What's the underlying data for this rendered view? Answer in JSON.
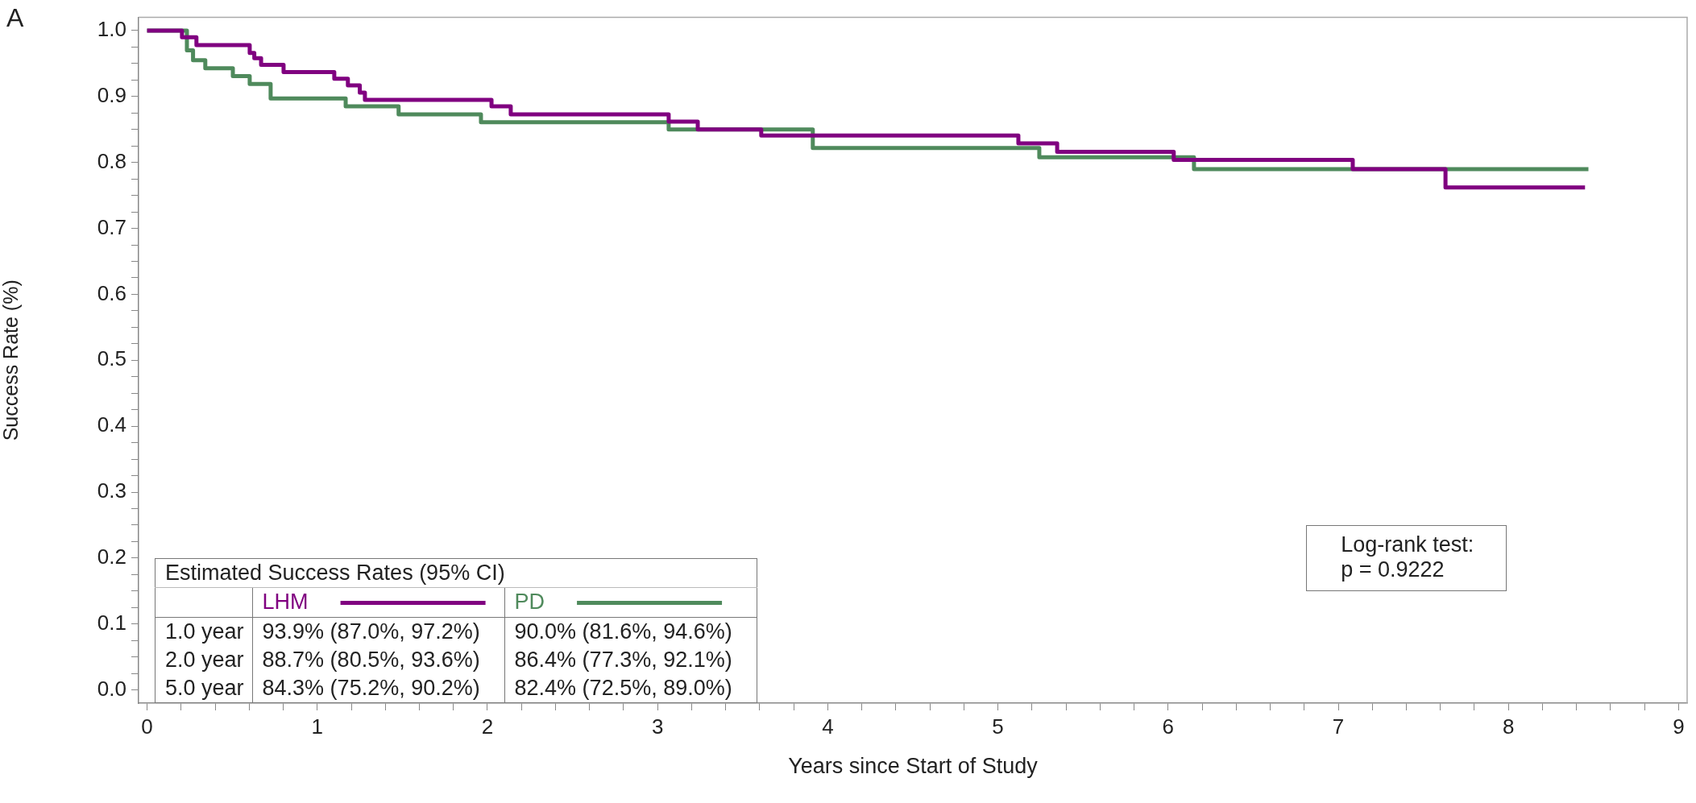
{
  "chart_data": {
    "type": "step",
    "xlabel": "Years since Start of Study",
    "ylabel": "Success Rate (%)",
    "legend": "bottom left",
    "legend_title": "Estimated Success Rates (95% CI)",
    "line_style": "solid",
    "grid": false,
    "annotations": [
      "A",
      "Log-rank test:",
      "p = 0.9222",
      "1.0 year",
      "93.9% (87.0%, 97.2%)",
      "90.0% (81.6%, 94.6%)",
      "2.0 year",
      "88.7% (80.5%, 93.6%)",
      "86.4% (77.3%, 92.1%)",
      "5.0 year",
      "84.3% (75.2%, 90.2%)",
      "82.4% (72.5%, 89.0%)"
    ],
    "xlim": [
      -0.05,
      9.05
    ],
    "ylim": [
      -0.02,
      1.02
    ],
    "xticks": [
      0,
      {
        "value": 0.2,
        "label": null
      },
      {
        "value": 0.4,
        "label": null
      },
      {
        "value": 0.6,
        "label": null
      },
      {
        "value": 0.8,
        "label": null
      },
      1,
      {
        "value": 1.2,
        "label": null
      },
      {
        "value": 1.4,
        "label": null
      },
      {
        "value": 1.6,
        "label": null
      },
      {
        "value": 1.8,
        "label": null
      },
      2,
      {
        "value": 2.2,
        "label": null
      },
      {
        "value": 2.4,
        "label": null
      },
      {
        "value": 2.6,
        "label": null
      },
      {
        "value": 2.8,
        "label": null
      },
      3,
      {
        "value": 3.2,
        "label": null
      },
      {
        "value": 3.4,
        "label": null
      },
      {
        "value": 3.6,
        "label": null
      },
      {
        "value": 3.8,
        "label": null
      },
      4,
      {
        "value": 4.2,
        "label": null
      },
      {
        "value": 4.4,
        "label": null
      },
      {
        "value": 4.6,
        "label": null
      },
      {
        "value": 4.8,
        "label": null
      },
      5,
      {
        "value": 5.2,
        "label": null
      },
      {
        "value": 5.4,
        "label": null
      },
      {
        "value": 5.6,
        "label": null
      },
      {
        "value": 5.8,
        "label": null
      },
      6,
      {
        "value": 6.2,
        "label": null
      },
      {
        "value": 6.4,
        "label": null
      },
      {
        "value": 6.6,
        "label": null
      },
      {
        "value": 6.8,
        "label": null
      },
      7,
      {
        "value": 7.2,
        "label": null
      },
      {
        "value": 7.4,
        "label": null
      },
      {
        "value": 7.6,
        "label": null
      },
      {
        "value": 7.8,
        "label": null
      },
      8,
      {
        "value": 8.2,
        "label": null
      },
      {
        "value": 8.4,
        "label": null
      },
      {
        "value": 8.6,
        "label": null
      },
      {
        "value": 8.8,
        "label": null
      },
      9
    ],
    "yticks": [
      {
        "value": 0,
        "label": "0.0"
      },
      {
        "value": 0.025,
        "label": null
      },
      {
        "value": 0.05,
        "label": null
      },
      {
        "value": 0.075,
        "label": null
      },
      0.1,
      {
        "value": 0.125,
        "label": null
      },
      {
        "value": 0.15,
        "label": null
      },
      {
        "value": 0.175,
        "label": null
      },
      0.2,
      {
        "value": 0.225,
        "label": null
      },
      {
        "value": 0.25,
        "label": null
      },
      {
        "value": 0.275,
        "label": null
      },
      0.3,
      {
        "value": 0.325,
        "label": null
      },
      {
        "value": 0.35,
        "label": null
      },
      {
        "value": 0.375,
        "label": null
      },
      0.4,
      {
        "value": 0.425,
        "label": null
      },
      {
        "value": 0.45,
        "label": null
      },
      {
        "value": 0.475,
        "label": null
      },
      0.5,
      {
        "value": 0.525,
        "label": null
      },
      {
        "value": 0.55,
        "label": null
      },
      {
        "value": 0.575,
        "label": null
      },
      0.6,
      {
        "value": 0.625,
        "label": null
      },
      {
        "value": 0.65,
        "label": null
      },
      {
        "value": 0.675,
        "label": null
      },
      0.7,
      {
        "value": 0.725,
        "label": null
      },
      {
        "value": 0.75,
        "label": null
      },
      {
        "value": 0.775,
        "label": null
      },
      0.8,
      {
        "value": 0.825,
        "label": null
      },
      {
        "value": 0.85,
        "label": null
      },
      {
        "value": 0.875,
        "label": null
      },
      0.9,
      {
        "value": 0.925,
        "label": null
      },
      {
        "value": 0.95,
        "label": null
      },
      {
        "value": 0.975,
        "label": null
      },
      {
        "value": 1,
        "label": "1.0"
      }
    ],
    "series": [
      {
        "name": "LHM",
        "color": "#800080",
        "x": [
          0,
          0.205,
          0.29,
          0.603,
          0.63,
          0.67,
          0.802,
          1.1,
          1.18,
          1.25,
          1.28,
          2.024,
          2.137,
          3.065,
          3.236,
          3.609,
          5.12,
          5.348,
          6.033,
          7.085,
          7.63,
          8.45
        ],
        "values": [
          1.0,
          0.99,
          0.978,
          0.966,
          0.958,
          0.948,
          0.937,
          0.927,
          0.917,
          0.906,
          0.895,
          0.885,
          0.873,
          0.862,
          0.85,
          0.841,
          0.829,
          0.816,
          0.804,
          0.79,
          0.762,
          0.762
        ]
      },
      {
        "name": "PD",
        "color": "#4f8a5c",
        "x": [
          0,
          0.234,
          0.27,
          0.342,
          0.504,
          0.603,
          0.726,
          1.167,
          1.478,
          1.962,
          3.065,
          3.912,
          5.243,
          6.152,
          8.47
        ],
        "values": [
          1.0,
          0.97,
          0.955,
          0.943,
          0.931,
          0.919,
          0.897,
          0.885,
          0.873,
          0.861,
          0.85,
          0.822,
          0.808,
          0.79,
          0.79
        ]
      }
    ]
  }
}
